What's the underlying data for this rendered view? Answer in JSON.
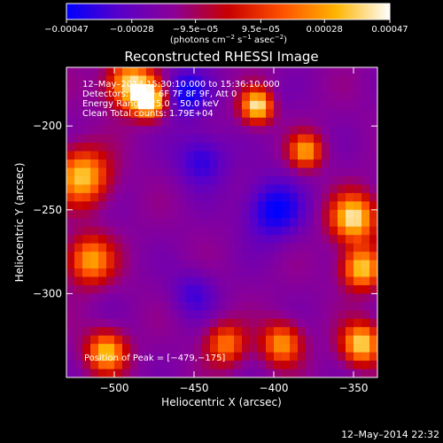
{
  "chart_data": {
    "type": "heatmap",
    "title": "Reconstructed RHESSI Image",
    "xlabel": "Heliocentric X (arcsec)",
    "ylabel": "Heliocentric Y (arcsec)",
    "xlim": [
      -530,
      -335
    ],
    "ylim": [
      -350,
      -165
    ],
    "x_ticks": [
      -500,
      -450,
      -400,
      -350
    ],
    "y_ticks": [
      -300,
      -250,
      -200
    ],
    "x_tick_labels": [
      "−500",
      "−450",
      "−400",
      "−350"
    ],
    "y_tick_labels": [
      "−300",
      "−250",
      "−200"
    ],
    "colorbar": {
      "range": [
        -0.00047,
        0.00047
      ],
      "ticks": [
        -0.00047,
        -0.00028,
        -9.5e-05,
        9.5e-05,
        0.00028,
        0.00047
      ],
      "tick_labels": [
        "−0.00047",
        "−0.00028",
        "−9.5e−05",
        "9.5e−05",
        "0.00028",
        "0.00047"
      ],
      "unit_main": "(photons cm",
      "unit_exp1": "−2",
      "unit_mid": " s",
      "unit_exp2": "−1",
      "unit_mid2": " asec",
      "unit_exp3": "−2",
      "unit_end": ")",
      "colormap_stops": [
        "#0000ff",
        "#5a00c8",
        "#8c0096",
        "#c80000",
        "#ff5000",
        "#ffb400",
        "#ffffff"
      ]
    },
    "annotations": {
      "time_range": "12–May–2014 15:30:10.000 to 15:36:10.000",
      "detectors": "Detectors: 3F 5F 6F 7F 8F 9F, Att 0",
      "energy": "Energy Range: 25.0 – 50.0 keV",
      "clean": "Clean     Total counts: 1.79E+04",
      "peak": "Position of Peak = [−479,−175]"
    },
    "peak_position": [
      -479,
      -175
    ],
    "grid": false,
    "timestamp": "12–May–2014 22:32",
    "hot_regions": [
      {
        "x": -490,
        "y": -175,
        "r": 14,
        "v": 0.0004
      },
      {
        "x": -478,
        "y": -185,
        "r": 10,
        "v": 0.00047
      },
      {
        "x": -410,
        "y": -188,
        "r": 10,
        "v": 0.00045
      },
      {
        "x": -350,
        "y": -255,
        "r": 14,
        "v": 0.00042
      },
      {
        "x": -345,
        "y": -285,
        "r": 12,
        "v": 0.00038
      },
      {
        "x": -520,
        "y": -230,
        "r": 16,
        "v": 0.00036
      },
      {
        "x": -515,
        "y": -280,
        "r": 14,
        "v": 0.0003
      },
      {
        "x": -505,
        "y": -335,
        "r": 12,
        "v": 0.00035
      },
      {
        "x": -430,
        "y": -330,
        "r": 12,
        "v": 0.00022
      },
      {
        "x": -395,
        "y": -330,
        "r": 12,
        "v": 0.00028
      },
      {
        "x": -345,
        "y": -330,
        "r": 12,
        "v": 0.0004
      },
      {
        "x": -380,
        "y": -215,
        "r": 10,
        "v": 0.00028
      }
    ],
    "cool_regions": [
      {
        "x": -455,
        "y": -180,
        "r": 14,
        "v": -0.00045
      },
      {
        "x": -445,
        "y": -220,
        "r": 16,
        "v": -0.0004
      },
      {
        "x": -400,
        "y": -250,
        "r": 18,
        "v": -0.00047
      },
      {
        "x": -450,
        "y": -300,
        "r": 14,
        "v": -0.00035
      },
      {
        "x": -400,
        "y": -185,
        "r": 10,
        "v": -0.00025
      },
      {
        "x": -505,
        "y": -305,
        "r": 10,
        "v": -0.0002
      }
    ]
  }
}
